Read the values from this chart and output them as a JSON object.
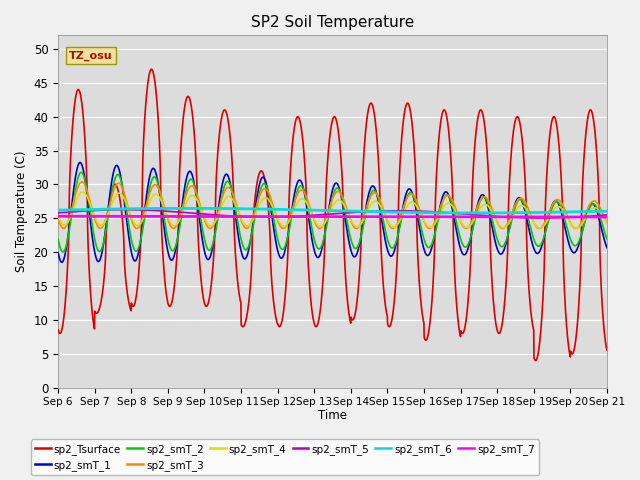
{
  "title": "SP2 Soil Temperature",
  "xlabel": "Time",
  "ylabel": "Soil Temperature (C)",
  "tz_label": "TZ_osu",
  "ylim": [
    0,
    52
  ],
  "yticks": [
    0,
    5,
    10,
    15,
    20,
    25,
    30,
    35,
    40,
    45,
    50
  ],
  "n_days": 15,
  "bg_color": "#dcdcdc",
  "fig_facecolor": "#f0f0f0",
  "legend": [
    {
      "label": "sp2_Tsurface",
      "color": "#dd0000",
      "lw": 1.2
    },
    {
      "label": "sp2_smT_1",
      "color": "#0000cc",
      "lw": 1.2
    },
    {
      "label": "sp2_smT_2",
      "color": "#00cc00",
      "lw": 1.2
    },
    {
      "label": "sp2_smT_3",
      "color": "#ff8800",
      "lw": 1.2
    },
    {
      "label": "sp2_smT_4",
      "color": "#dddd00",
      "lw": 1.2
    },
    {
      "label": "sp2_smT_5",
      "color": "#bb00bb",
      "lw": 1.2
    },
    {
      "label": "sp2_smT_6",
      "color": "#00dddd",
      "lw": 2.0
    },
    {
      "label": "sp2_smT_7",
      "color": "#ff00ff",
      "lw": 2.0
    }
  ],
  "xtick_labels": [
    "Sep 6",
    "Sep 7",
    "Sep 8",
    "Sep 9",
    "Sep 10",
    "Sep 11",
    "Sep 12",
    "Sep 13",
    "Sep 14",
    "Sep 15",
    "Sep 16",
    "Sep 17",
    "Sep 18",
    "Sep 19",
    "Sep 20",
    "Sep 21"
  ]
}
